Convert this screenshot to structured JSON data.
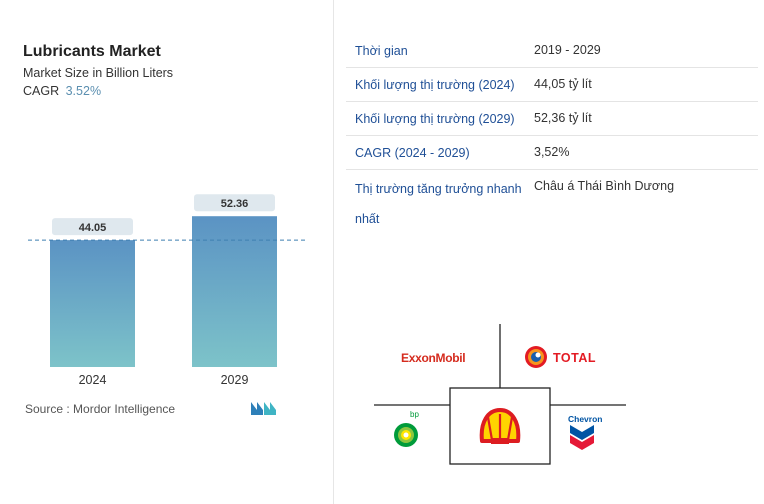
{
  "chart": {
    "title": "Lubricants Market",
    "subtitle": "Market Size in Billion Liters",
    "cagr_label": "CAGR",
    "cagr_value": "3.52%",
    "source": "Source :  Mordor Intelligence"
  },
  "chart_data": {
    "type": "bar",
    "categories": [
      "2024",
      "2029"
    ],
    "values": [
      44.05,
      52.36
    ],
    "value_labels": [
      "44.05",
      "52.36"
    ],
    "title": "Lubricants Market",
    "subtitle": "Market Size in Billion Liters",
    "xlabel": "",
    "ylabel": "",
    "reference_line": 44.05,
    "colors": {
      "bar_top": "#5b93c4",
      "bar_bottom": "#7dc3c9",
      "label_bg": "#dfe8ee",
      "ref_line": "#3f7fb0"
    }
  },
  "table": {
    "rows": [
      {
        "label": "Thời gian",
        "value": "2019 - 2029"
      },
      {
        "label": "Khối lượng thị trường (2024)",
        "value": "44,05 tỷ lít"
      },
      {
        "label": "Khối lượng thị trường (2029)",
        "value": "52,36 tỷ lít"
      },
      {
        "label": "CAGR (2024 - 2029)",
        "value": "3,52%"
      },
      {
        "label": "Thị trường tăng trưởng nhanh nhất",
        "value": "Châu á Thái Bình Dương"
      }
    ]
  },
  "players": {
    "exxon": "ExxonMobil",
    "total": "TOTAL",
    "bp": "bp",
    "shell": "shell-logo",
    "chevron": "Chevron"
  }
}
